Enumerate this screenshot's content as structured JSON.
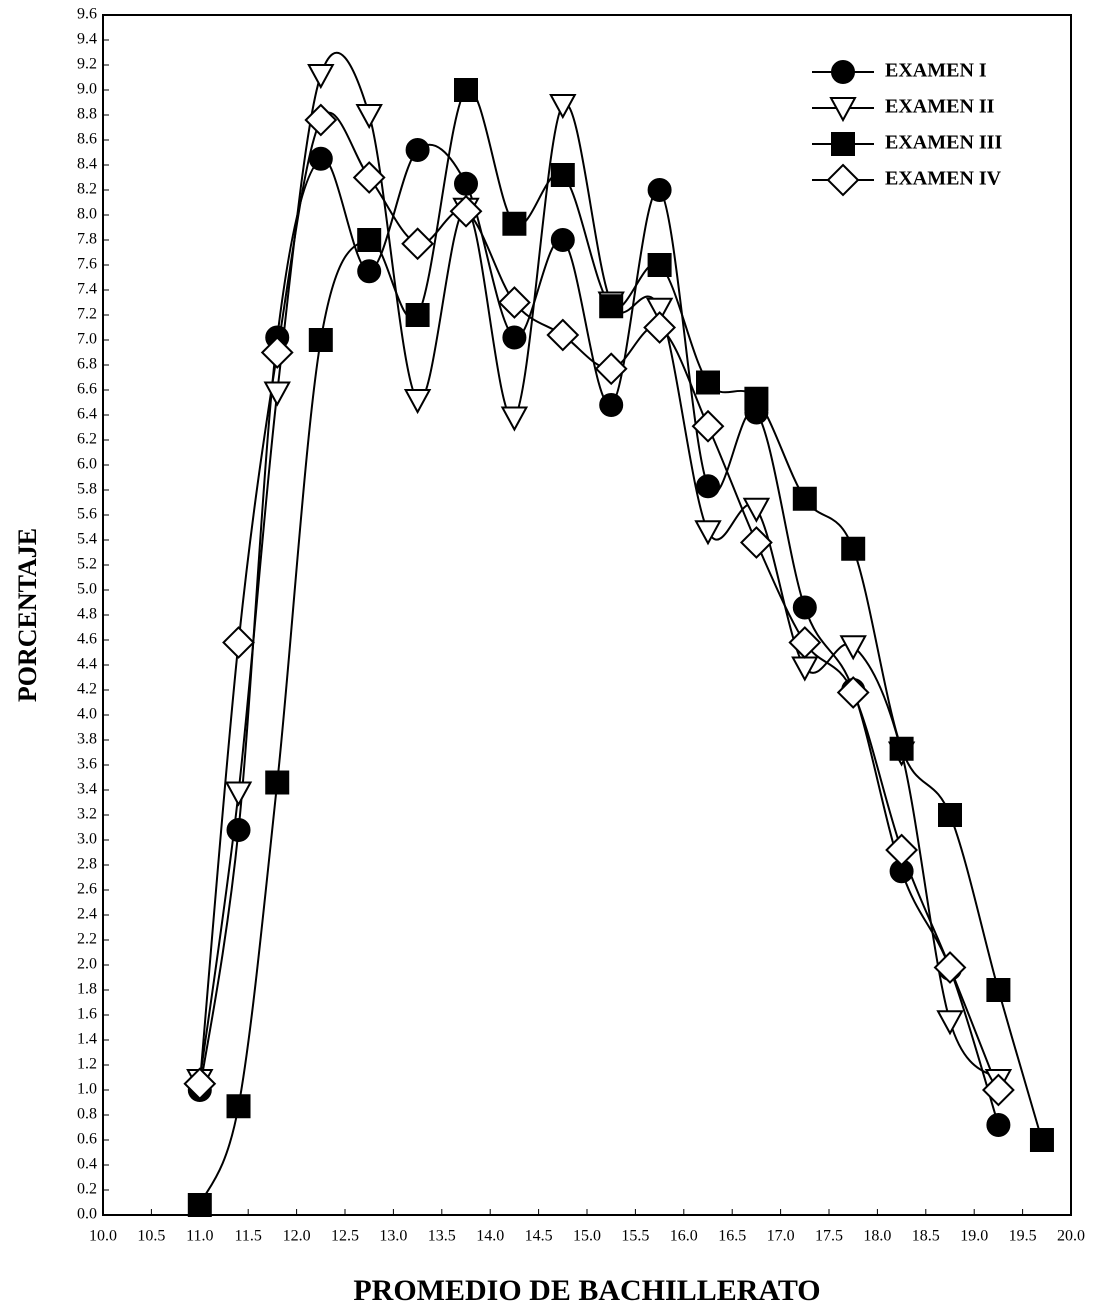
{
  "chart_data": {
    "type": "line",
    "x_label": "PROMEDIO DE BACHILLERATO",
    "y_label": "PORCENTAJE",
    "x": [
      11.0,
      11.4,
      11.8,
      12.25,
      12.75,
      13.25,
      13.75,
      14.25,
      14.75,
      15.25,
      15.75,
      16.25,
      16.75,
      17.25,
      17.75,
      18.25,
      18.75,
      19.25,
      19.7
    ],
    "series": [
      {
        "name": "EXAMEN I",
        "color": "#000000",
        "marker": "circle",
        "values": [
          1.0,
          3.08,
          7.02,
          8.45,
          7.55,
          8.52,
          8.25,
          7.02,
          7.8,
          6.48,
          8.2,
          5.83,
          6.42,
          4.86,
          4.2,
          2.75,
          1.97,
          0.72,
          null
        ]
      },
      {
        "name": "EXAMEN II",
        "color": "#ffffff",
        "marker": "triangle-down",
        "values": [
          1.08,
          3.38,
          6.58,
          9.12,
          8.8,
          6.52,
          8.05,
          6.38,
          8.88,
          7.3,
          7.25,
          5.47,
          5.65,
          4.38,
          4.55,
          3.7,
          1.55,
          1.08,
          null
        ]
      },
      {
        "name": "EXAMEN III",
        "color": "#000000",
        "marker": "square",
        "values": [
          0.08,
          0.87,
          3.46,
          7.0,
          7.8,
          7.2,
          9.0,
          7.93,
          8.32,
          7.27,
          7.6,
          6.66,
          6.53,
          5.73,
          5.33,
          3.73,
          3.2,
          1.8,
          0.6
        ]
      },
      {
        "name": "EXAMEN IV",
        "color": "#ffffff",
        "marker": "diamond",
        "values": [
          1.05,
          4.58,
          6.9,
          8.76,
          8.3,
          7.77,
          8.03,
          7.3,
          7.04,
          6.77,
          7.1,
          6.31,
          5.38,
          4.58,
          4.18,
          2.92,
          1.98,
          1.0,
          null
        ]
      }
    ],
    "xlim": [
      10.0,
      20.0
    ],
    "xticks": [
      {
        "value": 10,
        "label": "10.0"
      },
      10.5,
      {
        "value": 11,
        "label": "11.0"
      },
      11.5,
      {
        "value": 12,
        "label": "12.0"
      },
      12.5,
      {
        "value": 13,
        "label": "13.0"
      },
      13.5,
      {
        "value": 14,
        "label": "14.0"
      },
      14.5,
      {
        "value": 15,
        "label": "15.0"
      },
      15.5,
      {
        "value": 16,
        "label": "16.0"
      },
      16.5,
      {
        "value": 17,
        "label": "17.0"
      },
      17.5,
      {
        "value": 18,
        "label": "18.0"
      },
      18.5,
      {
        "value": 19,
        "label": "19.0"
      },
      19.5,
      {
        "value": 20,
        "label": "20.0"
      }
    ],
    "ylim": [
      0.0,
      9.6
    ],
    "yticks": [
      {
        "value": 0,
        "label": "0.0"
      },
      0.2,
      0.4,
      0.6,
      0.8,
      {
        "value": 1,
        "label": "1.0"
      },
      1.2,
      1.4,
      1.6,
      1.8,
      {
        "value": 2,
        "label": "2.0"
      },
      2.2,
      2.4,
      2.6,
      2.8,
      {
        "value": 3,
        "label": "3.0"
      },
      3.2,
      3.4,
      3.6,
      3.8,
      {
        "value": 4,
        "label": "4.0"
      },
      4.2,
      4.4,
      4.6,
      4.8,
      {
        "value": 5,
        "label": "5.0"
      },
      5.2,
      5.4,
      5.6,
      5.8,
      {
        "value": 6,
        "label": "6.0"
      },
      6.2,
      6.4,
      6.6,
      6.8,
      {
        "value": 7,
        "label": "7.0"
      },
      7.2,
      7.4,
      7.6,
      7.8,
      {
        "value": 8,
        "label": "8.0"
      },
      8.2,
      8.4,
      8.6,
      8.8,
      {
        "value": 9,
        "label": "9.0"
      },
      9.2,
      9.4,
      9.6
    ],
    "grid": false,
    "smooth": true,
    "legend": "top-right"
  }
}
